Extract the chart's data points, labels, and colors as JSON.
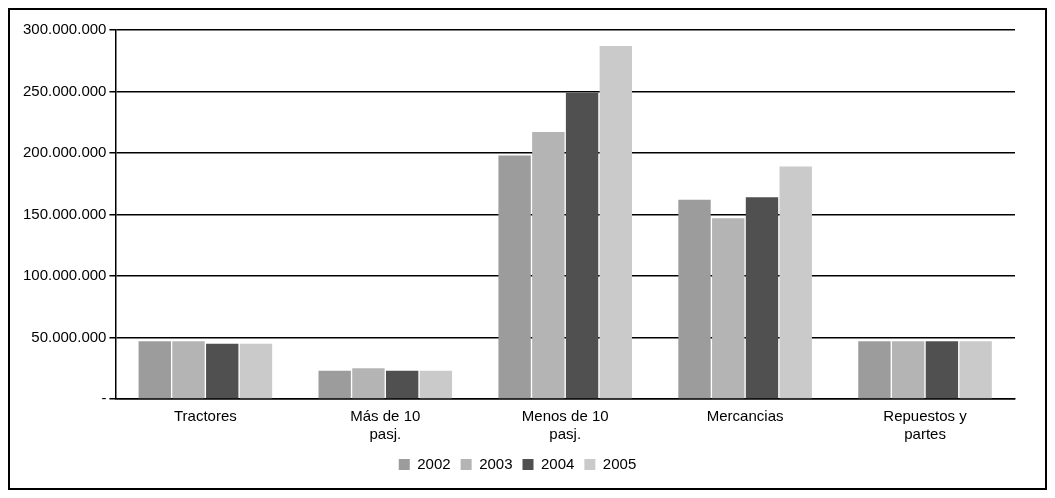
{
  "chart_data": {
    "type": "bar",
    "categories": [
      "Tractores",
      "Más de 10 pasj.",
      "Menos de 10 pasj.",
      "Mercancias",
      "Repuestos y partes"
    ],
    "series": [
      {
        "name": "2002",
        "color": "#9c9c9c",
        "values": [
          47000000,
          23000000,
          198000000,
          162000000,
          47000000
        ]
      },
      {
        "name": "2003",
        "color": "#b4b4b4",
        "values": [
          47000000,
          25000000,
          217000000,
          147000000,
          47000000
        ]
      },
      {
        "name": "2004",
        "color": "#505050",
        "values": [
          45000000,
          23000000,
          249000000,
          164000000,
          47000000
        ]
      },
      {
        "name": "2005",
        "color": "#cacaca",
        "values": [
          45000000,
          23000000,
          287000000,
          189000000,
          47000000
        ]
      }
    ],
    "ylim": [
      0,
      300000000
    ],
    "yticks": [
      {
        "value": 0,
        "label": "-"
      },
      {
        "value": 50000000,
        "label": "50.000.000"
      },
      {
        "value": 100000000,
        "label": "100.000.000"
      },
      {
        "value": 150000000,
        "label": "150.000.000"
      },
      {
        "value": 200000000,
        "label": "200.000.000"
      },
      {
        "value": 250000000,
        "label": "250.000.000"
      },
      {
        "value": 300000000,
        "label": "300.000.000"
      }
    ],
    "grid": "y",
    "legend": "bottom"
  }
}
